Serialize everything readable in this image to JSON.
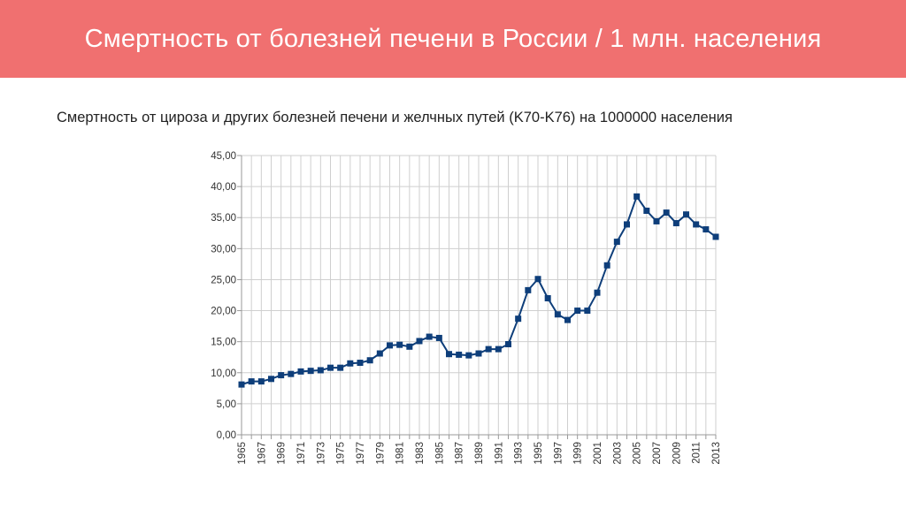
{
  "header": {
    "title": "Смертность от болезней печени в России / 1 млн. населения",
    "background_color": "#f07070"
  },
  "chart_data": {
    "type": "line",
    "title": "Смертность от цироза и других болезней печени и желчных путей (K70-K76) на 1000000 населения",
    "xlabel": "",
    "ylabel": "",
    "ylim": [
      0,
      45
    ],
    "y_ticks": [
      "0,00",
      "5,00",
      "10,00",
      "15,00",
      "20,00",
      "25,00",
      "30,00",
      "35,00",
      "40,00",
      "45,00"
    ],
    "x_tick_labels": [
      "1965",
      "1967",
      "1969",
      "1971",
      "1973",
      "1975",
      "1977",
      "1979",
      "1981",
      "1983",
      "1985",
      "1987",
      "1989",
      "1991",
      "1993",
      "1995",
      "1997",
      "1999",
      "2001",
      "2003",
      "2005",
      "2007",
      "2009",
      "2011",
      "2013"
    ],
    "grid": true,
    "legend": "none",
    "series": [
      {
        "name": "K70-K76",
        "color": "#0e3e7a",
        "x": [
          1965,
          1966,
          1967,
          1968,
          1969,
          1970,
          1971,
          1972,
          1973,
          1974,
          1975,
          1976,
          1977,
          1978,
          1979,
          1980,
          1981,
          1982,
          1983,
          1984,
          1985,
          1986,
          1987,
          1988,
          1989,
          1990,
          1991,
          1992,
          1993,
          1994,
          1995,
          1996,
          1997,
          1998,
          1999,
          2000,
          2001,
          2002,
          2003,
          2004,
          2005,
          2006,
          2007,
          2008,
          2009,
          2010,
          2011,
          2012,
          2013
        ],
        "values": [
          8.1,
          8.6,
          8.6,
          9.0,
          9.6,
          9.8,
          10.2,
          10.3,
          10.4,
          10.8,
          10.8,
          11.5,
          11.6,
          12.0,
          13.1,
          14.4,
          14.5,
          14.2,
          15.1,
          15.8,
          15.6,
          13.0,
          12.9,
          12.8,
          13.1,
          13.8,
          13.8,
          14.6,
          18.7,
          23.3,
          25.1,
          22.0,
          19.4,
          18.5,
          20.0,
          20.0,
          22.9,
          27.3,
          31.1,
          33.9,
          38.4,
          36.1,
          34.4,
          35.8,
          34.1,
          35.5,
          33.9,
          33.1,
          31.9
        ]
      }
    ]
  }
}
